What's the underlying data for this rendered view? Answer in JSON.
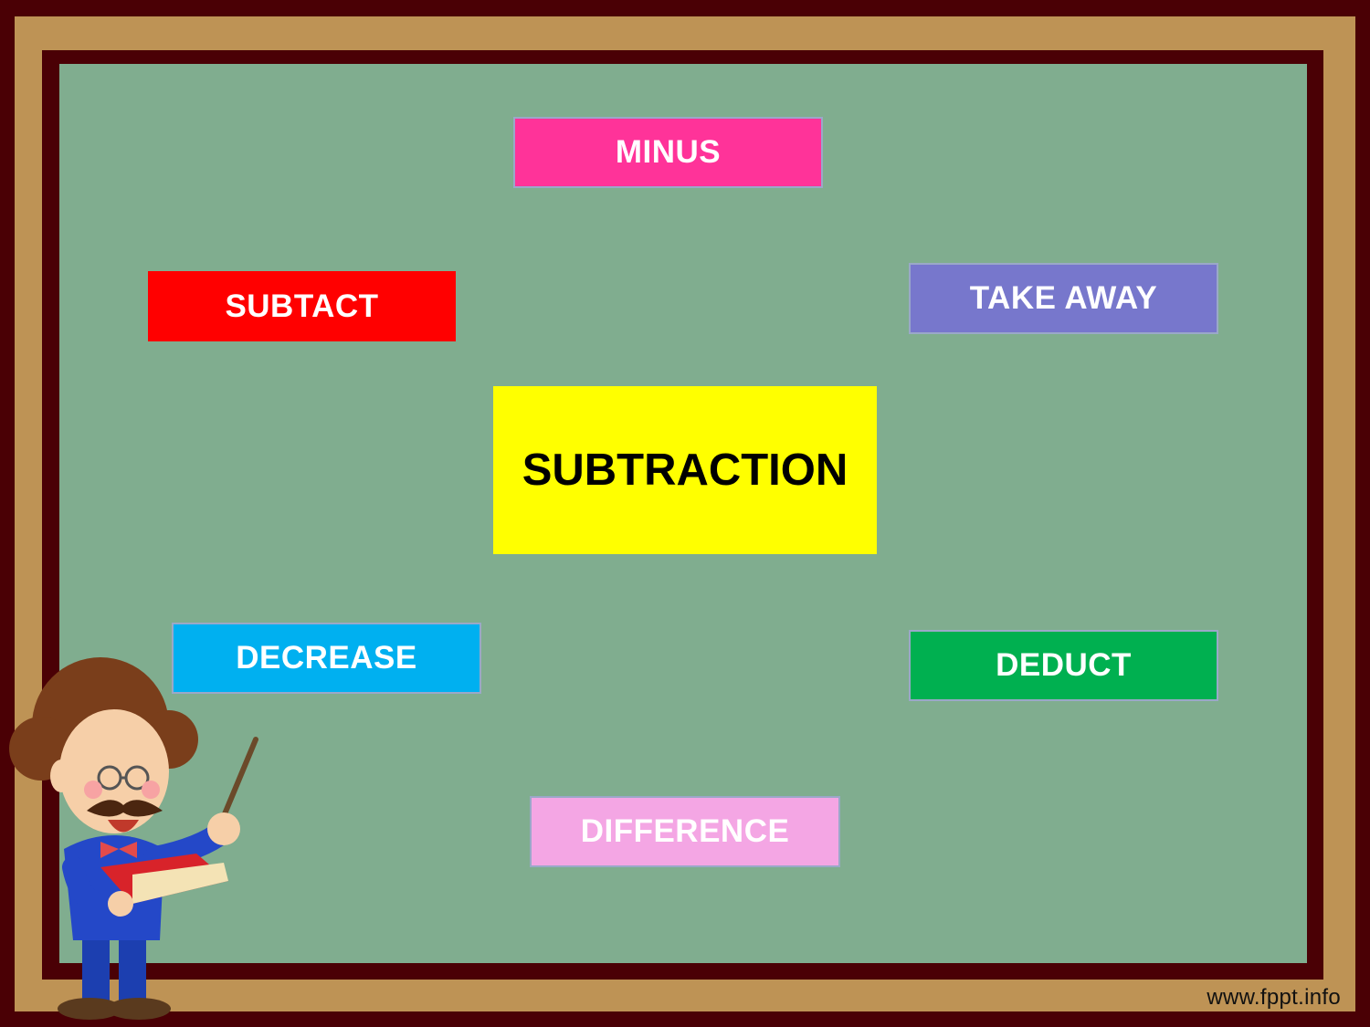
{
  "cards": {
    "center": {
      "label": "SUBTRACTION",
      "color": "#ffff00"
    },
    "minus": {
      "label": "MINUS",
      "color": "#ff3399"
    },
    "subtract": {
      "label": "SUBTACT",
      "color": "#ff0000"
    },
    "take_away": {
      "label": "TAKE AWAY",
      "color": "#7777cc"
    },
    "decrease": {
      "label": "DECREASE",
      "color": "#00b0f0"
    },
    "deduct": {
      "label": "DEDUCT",
      "color": "#00b050"
    },
    "difference": {
      "label": "DIFFERENCE",
      "color": "#f4a6e4"
    }
  },
  "footer": {
    "website": "www.fppt.info"
  },
  "illustration": {
    "icon": "teacher-cartoon-icon"
  }
}
